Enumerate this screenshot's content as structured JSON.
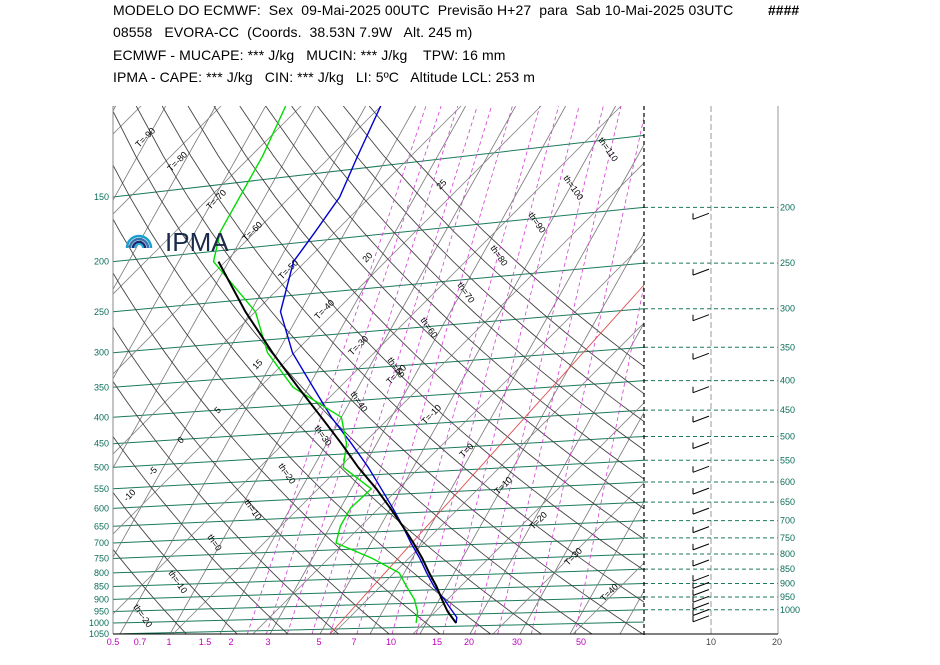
{
  "header": {
    "line1": "MODELO DO ECMWF:  Sex  09-Mai-2025 00UTC  Previsão H+27  para  Sab 10-Mai-2025 03UTC",
    "hashes": "####",
    "line2": "08558   EVORA-CC  (Coords.  38.53N 7.9W   Alt. 245 m)",
    "line3": "ECMWF - MUCAPE: *** J/kg   MUCIN: *** J/kg    TPW: 16 mm",
    "line4": "IPMA - CAPE: *** J/kg   CIN: *** J/kg   LI: 5ºC   Altitude LCL: 253 m"
  },
  "logo": {
    "text": "IPMA"
  },
  "chart_data": {
    "type": "line",
    "title": "Skew-T log-p sounding",
    "pressure_levels_left": [
      "150",
      "200",
      "250",
      "300",
      "350",
      "400",
      "450",
      "500",
      "550",
      "600",
      "650",
      "700",
      "750",
      "800",
      "850",
      "900",
      "950",
      "1000",
      "1050"
    ],
    "pressure_levels_right": [
      "200",
      "250",
      "300",
      "350",
      "400",
      "450",
      "500",
      "550",
      "600",
      "650",
      "700",
      "750",
      "800",
      "850",
      "900",
      "950",
      "1000"
    ],
    "mixing_ratio_ticks": [
      "0.5",
      "0.7",
      "1",
      "1.5",
      "2",
      "3",
      "5",
      "7",
      "10",
      "15",
      "20",
      "30",
      "50"
    ],
    "wind_axis_ticks": [
      "10",
      "20"
    ],
    "isotherm_labels": [
      "T=-90",
      "T=-80",
      "T=-70",
      "T=-60",
      "T=-50",
      "T=-40",
      "T=-30",
      "T=-20",
      "T=-10",
      "T=0",
      "T=10",
      "T=20",
      "T=30",
      "T=40"
    ],
    "dry_adiabat_labels": [
      "th=110",
      "th=100",
      "th=90",
      "th=80",
      "th=70",
      "th=60",
      "th=50",
      "th=40",
      "th=30",
      "th=20",
      "th=10",
      "th=0",
      "th=-10",
      "th=-20"
    ],
    "moist_adiabat_labels": [
      "25",
      "20",
      "15",
      "5",
      "0",
      "-5",
      "-10"
    ],
    "series": [
      {
        "name": "Temperature",
        "color": "#0000cc",
        "pressure": [
          1000,
          975,
          950,
          925,
          900,
          850,
          800,
          750,
          700,
          650,
          600,
          550,
          500,
          450,
          400,
          350,
          300,
          250,
          200,
          175,
          150,
          125,
          100
        ],
        "values": [
          16,
          15.5,
          14,
          12.5,
          11,
          7.5,
          4.5,
          1.5,
          -2,
          -5.5,
          -9.5,
          -14,
          -19,
          -25,
          -32,
          -39,
          -47,
          -54,
          -57,
          -56,
          -55,
          -56,
          -57
        ]
      },
      {
        "name": "Dewpoint",
        "color": "#00dd00",
        "pressure": [
          1000,
          975,
          950,
          925,
          900,
          850,
          800,
          750,
          700,
          650,
          600,
          550,
          500,
          450,
          400,
          350,
          300,
          250,
          200,
          175,
          150,
          125,
          100
        ],
        "values": [
          8,
          7.5,
          7,
          6,
          5,
          2,
          -1,
          -8,
          -17,
          -18,
          -18,
          -16,
          -24,
          -26,
          -30,
          -43,
          -52,
          -59,
          -73,
          -75,
          -75,
          -75,
          -76
        ]
      },
      {
        "name": "Parcel",
        "color": "#000000",
        "pressure": [
          1000,
          950,
          900,
          850,
          800,
          750,
          700,
          650,
          600,
          550,
          500,
          450,
          400,
          350,
          300,
          250,
          200
        ],
        "values": [
          16,
          13,
          10.5,
          8,
          5,
          2,
          -1.5,
          -5.5,
          -10,
          -15,
          -21,
          -27,
          -34,
          -42,
          -51,
          -61,
          -72
        ]
      }
    ],
    "wind_barbs_pressure": [
      1000,
      975,
      950,
      925,
      900,
      875,
      850,
      800,
      750,
      700,
      650,
      600,
      550,
      500,
      450,
      400,
      350,
      300,
      250,
      200
    ],
    "xlabel": "",
    "ylabel": "",
    "ylim": [
      1050,
      100
    ],
    "xlim": [
      -40,
      50
    ],
    "grid": true
  }
}
